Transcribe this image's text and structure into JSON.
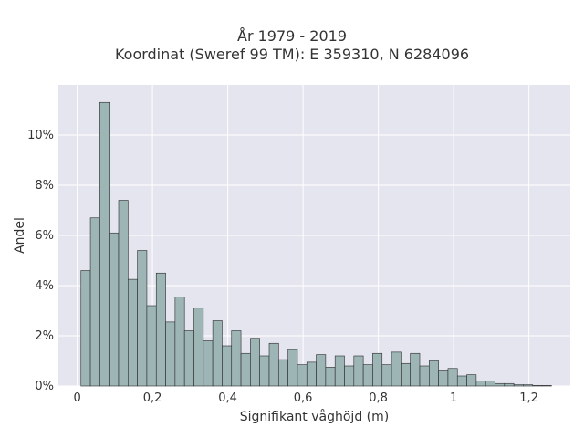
{
  "chart_data": {
    "type": "bar",
    "title": [
      "År 1979 - 2019",
      "Koordinat (Sweref 99 TM): E 359310, N 6284096"
    ],
    "xlabel": "Signifikant våghöjd (m)",
    "ylabel": "Andel",
    "xlim": [
      -0.05,
      1.31
    ],
    "ylim": [
      0,
      0.12
    ],
    "x_ticks": [
      {
        "value": 0,
        "label": "0"
      },
      {
        "value": 0.2,
        "label": "0,2"
      },
      {
        "value": 0.4,
        "label": "0,4"
      },
      {
        "value": 0.6,
        "label": "0,6"
      },
      {
        "value": 0.8,
        "label": "0,8"
      },
      {
        "value": 1.0,
        "label": "1"
      },
      {
        "value": 1.2,
        "label": "1,2"
      }
    ],
    "y_ticks": [
      {
        "value": 0,
        "label": "0%"
      },
      {
        "value": 0.02,
        "label": "2%"
      },
      {
        "value": 0.04,
        "label": "4%"
      },
      {
        "value": 0.06,
        "label": "6%"
      },
      {
        "value": 0.08,
        "label": "8%"
      },
      {
        "value": 0.1,
        "label": "10%"
      }
    ],
    "bin_start": 0.01,
    "bin_width": 0.025,
    "values": [
      0.046,
      0.067,
      0.113,
      0.061,
      0.074,
      0.0425,
      0.054,
      0.032,
      0.045,
      0.0255,
      0.0355,
      0.022,
      0.031,
      0.018,
      0.026,
      0.016,
      0.022,
      0.013,
      0.019,
      0.012,
      0.017,
      0.0105,
      0.0145,
      0.0085,
      0.0095,
      0.0125,
      0.0075,
      0.012,
      0.008,
      0.012,
      0.0085,
      0.013,
      0.0085,
      0.0135,
      0.009,
      0.013,
      0.008,
      0.01,
      0.006,
      0.007,
      0.004,
      0.0045,
      0.002,
      0.002,
      0.001,
      0.001,
      0.0005,
      0.0005,
      0.0002,
      0.0002
    ],
    "grid": true,
    "colors": {
      "plot_background": "#e5e5ef",
      "bar_fill": "#9db5b5",
      "bar_stroke": "#2a2a2a",
      "grid": "#ffffff"
    }
  }
}
